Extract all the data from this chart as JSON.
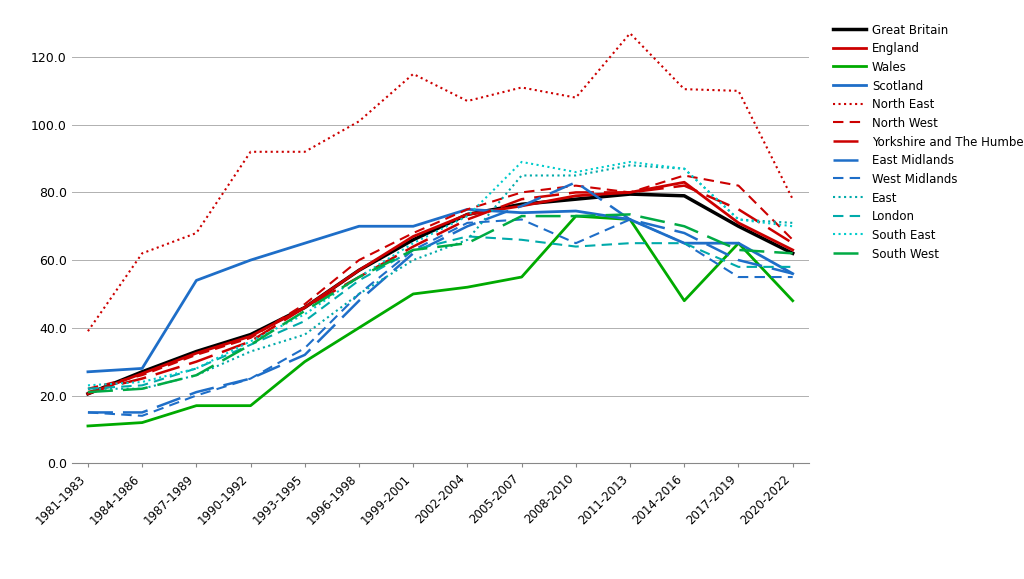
{
  "x_labels": [
    "1981-1983",
    "1984-1986",
    "1987-1989",
    "1990-1992",
    "1993-1995",
    "1996-1998",
    "1999-2001",
    "2002-2004",
    "2005-2007",
    "2008-2010",
    "2011-2013",
    "2014-2016",
    "2017-2019",
    "2020-2022"
  ],
  "series": {
    "Great Britain": {
      "color": "#000000",
      "ls": "-",
      "lw": 2.5,
      "dashes": null,
      "values": [
        20.5,
        27.0,
        33.0,
        38.0,
        46.0,
        57.0,
        66.0,
        73.5,
        76.5,
        78.0,
        79.5,
        79.0,
        70.0,
        62.0
      ]
    },
    "England": {
      "color": "#cc0000",
      "ls": "-",
      "lw": 2.0,
      "dashes": null,
      "values": [
        20.5,
        26.5,
        32.5,
        37.5,
        46.0,
        57.0,
        67.0,
        73.5,
        76.0,
        79.0,
        80.0,
        83.0,
        71.0,
        63.0
      ]
    },
    "Wales": {
      "color": "#00aa00",
      "ls": "-",
      "lw": 2.0,
      "dashes": null,
      "values": [
        11.0,
        12.0,
        17.0,
        17.0,
        30.0,
        40.0,
        50.0,
        52.0,
        55.0,
        73.0,
        72.0,
        48.0,
        65.0,
        48.0
      ]
    },
    "Scotland": {
      "color": "#1e6ec8",
      "ls": "-",
      "lw": 2.0,
      "dashes": null,
      "values": [
        27.0,
        28.0,
        54.0,
        60.0,
        65.0,
        70.0,
        70.0,
        75.0,
        74.0,
        74.5,
        72.0,
        65.0,
        65.0,
        56.0
      ]
    },
    "North East": {
      "color": "#cc0000",
      "ls": ":",
      "lw": 1.5,
      "dashes": null,
      "values": [
        39.0,
        62.0,
        68.0,
        92.0,
        92.0,
        101.0,
        115.0,
        107.0,
        111.0,
        108.0,
        127.0,
        110.5,
        110.0,
        78.0
      ]
    },
    "North West": {
      "color": "#cc0000",
      "ls": "--",
      "lw": 1.5,
      "dashes": [
        5,
        3
      ],
      "values": [
        22.0,
        26.0,
        32.0,
        37.0,
        47.0,
        60.0,
        68.0,
        75.0,
        80.0,
        82.0,
        80.0,
        85.0,
        82.0,
        66.0
      ]
    },
    "Yorkshire and The Humber": {
      "color": "#cc0000",
      "ls": "--",
      "lw": 1.8,
      "dashes": [
        10,
        4
      ],
      "values": [
        21.0,
        25.0,
        30.0,
        36.0,
        46.0,
        55.0,
        64.0,
        72.0,
        78.0,
        80.0,
        80.0,
        82.0,
        75.0,
        65.0
      ]
    },
    "East Midlands": {
      "color": "#1e6ec8",
      "ls": "--",
      "lw": 1.8,
      "dashes": [
        10,
        4
      ],
      "values": [
        15.0,
        15.0,
        21.0,
        25.0,
        32.0,
        48.0,
        62.0,
        70.0,
        76.0,
        83.0,
        72.0,
        68.0,
        60.0,
        56.0
      ]
    },
    "West Midlands": {
      "color": "#1e6ec8",
      "ls": "--",
      "lw": 1.5,
      "dashes": [
        5,
        3
      ],
      "values": [
        15.0,
        14.0,
        20.0,
        25.0,
        34.0,
        50.0,
        63.0,
        71.0,
        72.0,
        65.0,
        72.0,
        65.0,
        55.0,
        55.0
      ]
    },
    "East": {
      "color": "#00aaaa",
      "ls": ":",
      "lw": 1.5,
      "dashes": null,
      "values": [
        22.0,
        22.0,
        26.0,
        33.0,
        38.0,
        50.0,
        60.0,
        66.0,
        85.0,
        85.0,
        88.0,
        87.0,
        72.0,
        71.0
      ]
    },
    "London": {
      "color": "#00aaaa",
      "ls": "--",
      "lw": 1.5,
      "dashes": [
        5,
        3
      ],
      "values": [
        22.0,
        23.0,
        28.0,
        35.0,
        42.0,
        54.0,
        63.0,
        67.0,
        66.0,
        64.0,
        65.0,
        65.0,
        58.0,
        58.0
      ]
    },
    "South East": {
      "color": "#00cccc",
      "ls": ":",
      "lw": 1.5,
      "dashes": null,
      "values": [
        23.0,
        24.0,
        28.0,
        36.0,
        44.0,
        55.0,
        65.0,
        73.0,
        89.0,
        86.0,
        89.0,
        87.0,
        72.0,
        70.0
      ]
    },
    "South West": {
      "color": "#00aa44",
      "ls": "--",
      "lw": 1.8,
      "dashes": [
        10,
        4
      ],
      "values": [
        21.0,
        22.0,
        26.0,
        35.0,
        45.0,
        55.0,
        63.0,
        65.0,
        73.0,
        73.0,
        73.5,
        70.0,
        63.0,
        62.0
      ]
    }
  },
  "ylim": [
    0.0,
    130.0
  ],
  "yticks": [
    0.0,
    20.0,
    40.0,
    60.0,
    80.0,
    100.0,
    120.0
  ],
  "background_color": "#ffffff",
  "grid_color": "#b0b0b0"
}
